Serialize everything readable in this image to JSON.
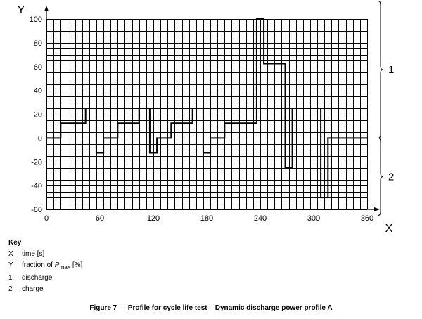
{
  "chart_data": {
    "type": "line",
    "xlabel": "X",
    "ylabel": "Y",
    "xlim": [
      0,
      360
    ],
    "ylim": [
      -60,
      100
    ],
    "xticks": [
      0,
      60,
      120,
      180,
      240,
      300,
      360
    ],
    "yticks": [
      100,
      80,
      60,
      40,
      20,
      0,
      -20,
      -40,
      -60
    ],
    "grid": true,
    "series": [
      {
        "x": [
          0,
          16,
          16,
          44,
          44,
          56,
          56,
          64,
          64,
          80,
          80,
          104,
          104,
          116,
          116,
          124,
          124,
          140,
          140,
          164,
          164,
          176,
          176,
          184,
          184,
          200,
          200,
          236,
          236,
          244,
          244,
          268,
          268,
          276,
          276,
          308,
          308,
          316,
          316,
          360
        ],
        "y": [
          0,
          0,
          12.5,
          12.5,
          25,
          25,
          -12.5,
          -12.5,
          0,
          0,
          12.5,
          12.5,
          25,
          25,
          -12.5,
          -12.5,
          0,
          0,
          12.5,
          12.5,
          25,
          25,
          -12.5,
          -12.5,
          0,
          0,
          12.5,
          12.5,
          100,
          100,
          62.5,
          62.5,
          -25,
          -25,
          25,
          25,
          -50,
          -50,
          0,
          0
        ]
      }
    ],
    "braces": [
      {
        "label": "1",
        "from": 0,
        "to": 115
      },
      {
        "label": "2",
        "from": -65,
        "to": 0
      }
    ]
  },
  "key": {
    "title": "Key",
    "items": [
      {
        "symbol": "X",
        "text": "time [s]"
      },
      {
        "symbol": "Y",
        "text_before": "fraction of ",
        "symbol_italic": "P",
        "subscript": "max",
        "text_after": " [%]"
      },
      {
        "symbol": "1",
        "text": "discharge"
      },
      {
        "symbol": "2",
        "text": "charge"
      }
    ]
  },
  "caption": "Figure 7 — Profile for cycle life test – Dynamic discharge power profile A"
}
